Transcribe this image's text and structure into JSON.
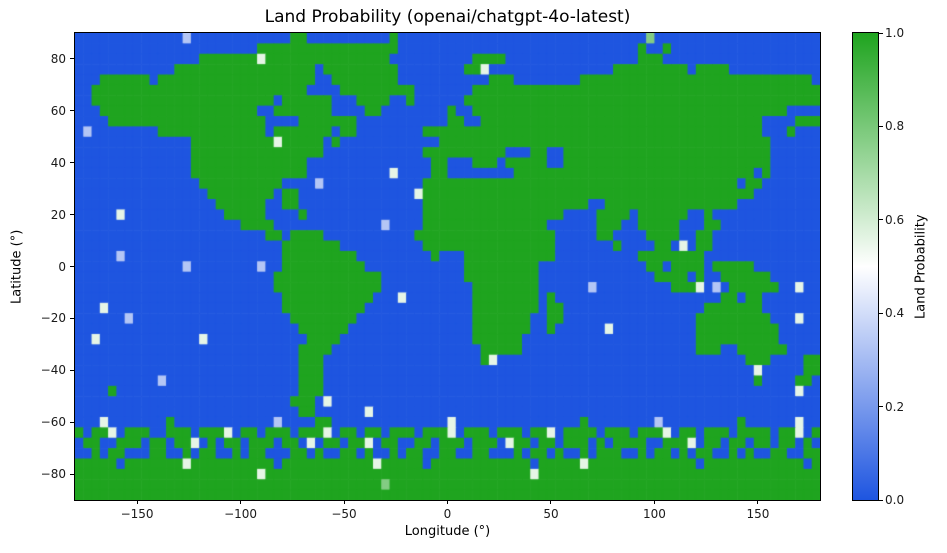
{
  "chart_data": {
    "type": "heatmap",
    "title": "Land Probability (openai/chatgpt-4o-latest)",
    "xlabel": "Longitude (°)",
    "ylabel": "Latitude (°)",
    "x_ticks": [
      -150,
      -100,
      -50,
      0,
      50,
      100,
      150
    ],
    "y_ticks": [
      80,
      60,
      40,
      20,
      0,
      -20,
      -40,
      -60,
      -80
    ],
    "x_range": [
      -180,
      180
    ],
    "y_range": [
      -90,
      90
    ],
    "grid_cols": 90,
    "grid_rows": 45,
    "cell_degrees": 4,
    "colorbar": {
      "label": "Land Probability",
      "ticks": [
        0.0,
        0.2,
        0.4,
        0.6,
        0.8,
        1.0
      ],
      "color_low": "#1E55E0",
      "color_mid": "#FFFFFF",
      "color_high": "#1FA41F"
    },
    "value_encoding": "each row is a string of 90 digits; digit d means land probability d/9 (0=ocean blue, 9=land green); rows ordered from latitude +90 (top) to -90 (bottom)",
    "rows": [
      "000000000000030000000000009900000000009000000000000000000000000000000700000000000000000000",
      "000000000000000000000099999999999999999000000000000000000000000000009009000000000000000000",
      "000000000000000999999959999999999999990000000000999900000000000000009990000000000000000000",
      "000000000000999999999999999990999999999000000009950000000000000009999999990999900000000000",
      "000999999099999999999999999990099999999000000000009990000000099999999999999999999999999990",
      "009999999999999999999999999900009999999990000000999999999999999999999999999999999999999999",
      "009999999999999999999999099999900099990090000009999999999999999999999999999999999999999999",
      "000999999999999999999900999999900009900000000900999999999999999999999999999999999999990000",
      "000099999999999999999990000999999900000000000990099999999999999999999999999999999990000999",
      "030000000099999999999990999999909900000000999999999999999999999999999999999999999990009000",
      "000000000000009999999999599999090000000000009999999999999999999999999999999999999999000000",
      "000000000000009999999999999999000000000000999999999900099009999999999999999999999999000000",
      "000000000000009999999999999900000000000000099000999099999009999999999999999999999999000000",
      "000000000000009999999999999900000000005000099000000009999999999999999999999999999909000000",
      "000000000000000999999999900003000000000000999999999999999999999999999999999999990990000000",
      "000000000000000099999999099000000000000005999999999999999999999999999999999999999900000000",
      "000000000000000009999990099000000000000000999999999999999999990099999999999999990000000000",
      "000005000000000000999990000900000000000000999999999999999990000999909999990090000000000000",
      "000000000000000000009999000000000000030000999999999999999000000999009999900099000000000000",
      "000000000000000000000009909999000000000009999999999999999900000990000999900990000000000000",
      "000000000000000000000000099999990000000000999999999999999900000009000099050990000000000000",
      "000003000000000000000000099999999900000000090009999999999900000000009999999900000000000000",
      "000000000000030000000030099999999990000000000009999999990000000000000990999909999900000000",
      "000000000000000000000000999999999999900000000009999999990000000000000099990900999999000000",
      "000000000000000000000000999999999999900000000000999999990000003000000000999503099999900500",
      "000000000000000000000000099999999999000500000000999999990900000000000000000000990990000000",
      "000500000000000000000000099999999990000000000000999999990990000000000000000099999990000000",
      "000000300000000000000000009999999900000000000000999999900990000000000000000999999999000500",
      "000000000000000000000000000999999000000000000000999999900900000050000000000999999999900000",
      "005000000000000500000000000099990000000000000000999999000000000000000000000999999999900000",
      "000000000000000000000000000999900000000000000000099999000000000000000000000999009999990000",
      "000000000000000000000000000999000000000000000000095000000000000000000000000000000999000099",
      "000000000000000000000000000999000000000000000000000000000000000000000000000000000050000099",
      "000000000030000000000000000999000000000000000000000000000000000000000000000000000090000990",
      "000090000000000000000000000999000000000000000000000000000000000000000000000000000000000500",
      "000000000000000000000000009990500000000000000000000000000000000000000000000000000000000000",
      "000000000000000000000000000990000005000000000000000000000000000000000000000000000000000000",
      "000500000009000000000000300009900000000000000500000000000000090000000030000000009000000500",
      "909950999009990999509909990999509909909990999509990999099509999099909995099099909999099509",
      "099009990990995090990999099050990995099009909990999059909909990909999009995099099099099090",
      "009099000990090990090990009909009909009099009900990009099090090999009099090990090900990099",
      "999990999999959999999999099999999999599999099999999999909999959999999999999099999999999909",
      "999999999999999999999959999999999999999999999999999999959999999999999999999999999999999999",
      "999999999999999999999999999999999999979999999999999999999999999999999999999999999999999999",
      "999999999999999999999999999999999999999999999999999999999999999999999999999999999999999999"
    ]
  }
}
